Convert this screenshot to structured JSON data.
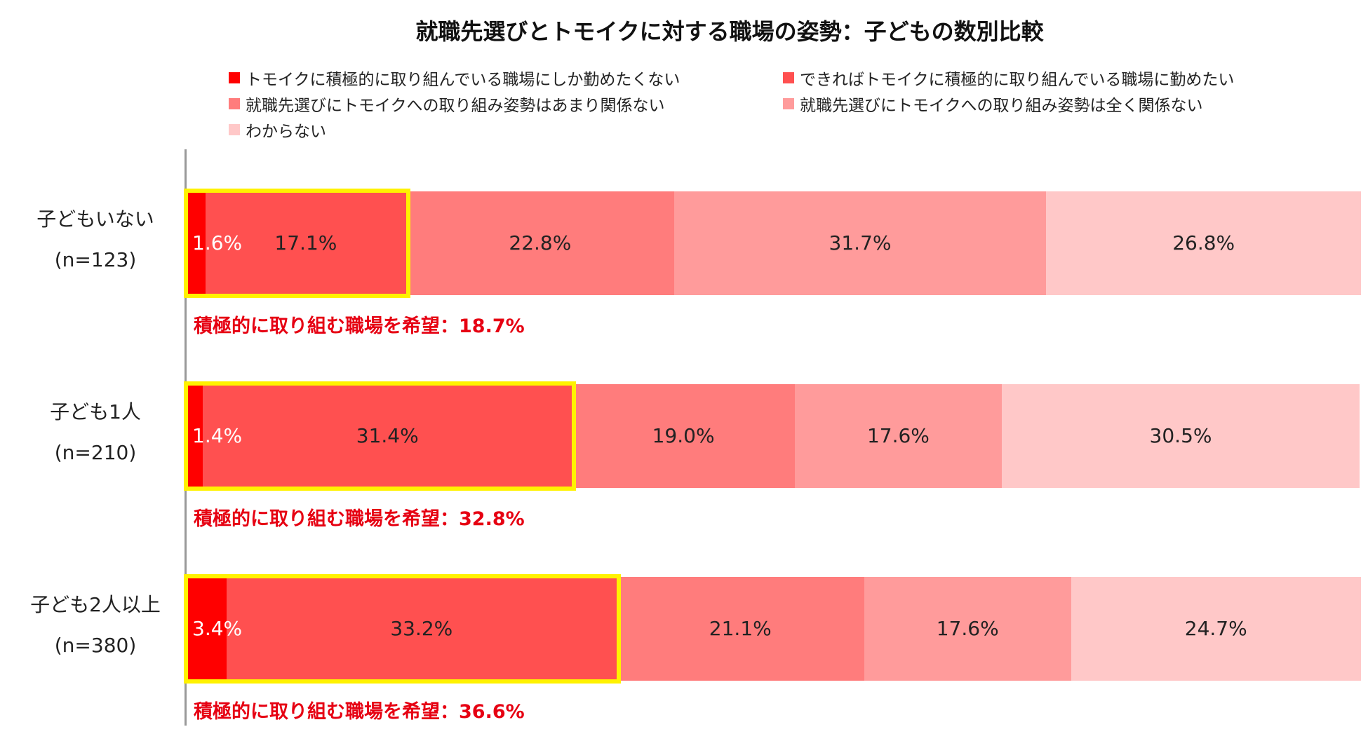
{
  "chart_data": {
    "type": "bar",
    "orientation": "horizontal",
    "stacked": true,
    "title": "就職先選びとトモイクに対する職場の姿勢：子どもの数別比較",
    "categories": [
      {
        "label": "子どもいない",
        "n": "(n=123)"
      },
      {
        "label": "子ども1人",
        "n": "(n=210)"
      },
      {
        "label": "子ども2人以上",
        "n": "(n=380)"
      }
    ],
    "series": [
      {
        "name": "トモイクに積極的に取り組んでいる職場にしか勤めたくない",
        "color": "#ff0000",
        "values": [
          1.6,
          1.4,
          3.4
        ],
        "labels": [
          "1.6%",
          "1.4%",
          "3.4%"
        ]
      },
      {
        "name": "できればトモイクに積極的に取り組んでいる職場に勤めたい",
        "color": "#ff5050",
        "values": [
          17.1,
          31.4,
          33.2
        ],
        "labels": [
          "17.1%",
          "31.4%",
          "33.2%"
        ]
      },
      {
        "name": "就職先選びにトモイクへの取り組み姿勢はあまり関係ない",
        "color": "#ff7c7c",
        "values": [
          22.8,
          19.0,
          21.1
        ],
        "labels": [
          "22.8%",
          "19.0%",
          "21.1%"
        ]
      },
      {
        "name": "就職先選びにトモイクへの取り組み姿勢は全く関係ない",
        "color": "#ff9b9b",
        "values": [
          31.7,
          17.6,
          17.6
        ],
        "labels": [
          "31.7%",
          "17.6%",
          "17.6%"
        ]
      },
      {
        "name": "わからない",
        "color": "#ffc8c8",
        "values": [
          26.8,
          30.5,
          24.7
        ],
        "labels": [
          "26.8%",
          "30.5%",
          "24.7%"
        ]
      }
    ],
    "first_label_color": "#ffffff",
    "summaries": [
      "積極的に取り組む職場を希望：18.7%",
      "積極的に取り組む職場を希望：32.8%",
      "積極的に取り組む職場を希望：36.6%"
    ],
    "summary_color": "#e60012",
    "highlight_color": "#fff200",
    "xlim": [
      0,
      100
    ],
    "legend_position": "top",
    "grid": false
  }
}
